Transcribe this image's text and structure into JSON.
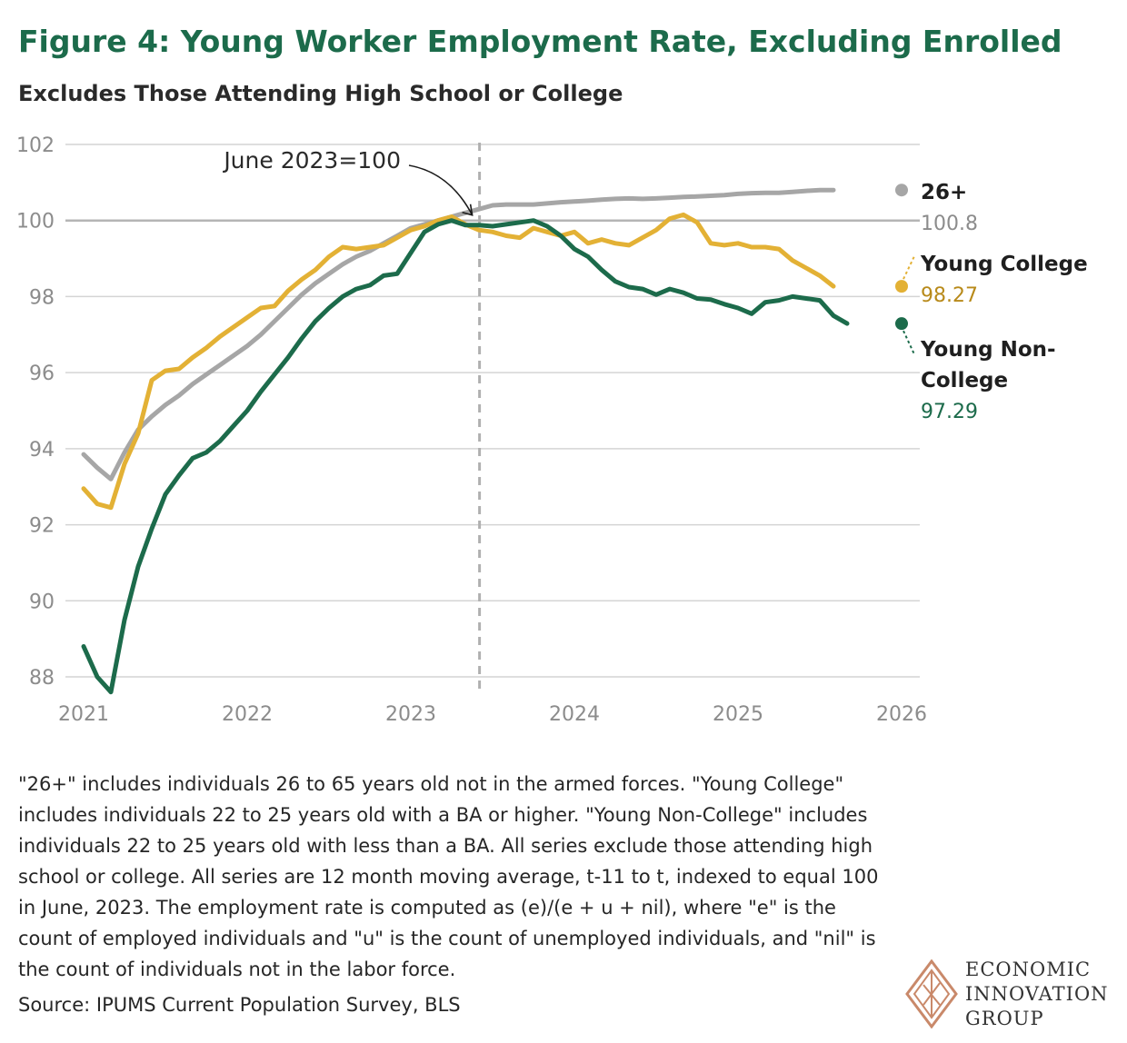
{
  "title": "Figure 4: Young Worker Employment Rate, Excluding Enrolled",
  "subtitle": "Excludes Those Attending High School or College",
  "note": "\"26+\" includes individuals 26 to 65 years old not in the armed forces. \"Young College\" includes individuals 22 to 25 years old with a BA or higher. \"Young Non-College\" includes individuals 22 to 25 years old with less than a BA. All series exclude those attending high school or college. All series are 12 month moving average, t-11 to t, indexed to equal 100 in June, 2023. The employment rate is computed as (e)/(e + u + nil), where \"e\" is the count of employed individuals and \"u\" is the count of unemployed individuals, and \"nil\" is the count of individuals not in the labor force.",
  "source": "Source: IPUMS Current Population Survey, BLS",
  "logo": {
    "line1": "ECONOMIC",
    "line2": "INNOVATION",
    "line3": "GROUP"
  },
  "colors": {
    "title": "#1c6b4b",
    "grid": "#d4d4d4",
    "axis_text": "#8c8c8c",
    "annotation": "#2a2a2a"
  },
  "chart_data": {
    "type": "line",
    "title": "Figure 4: Young Worker Employment Rate, Excluding Enrolled",
    "subtitle": "Excludes Those Attending High School or College",
    "xlabel": "",
    "ylabel": "",
    "xlim": [
      2021,
      2026
    ],
    "ylim": [
      88,
      102
    ],
    "x_ticks": [
      "2021",
      "2022",
      "2023",
      "2024",
      "2025",
      "2026"
    ],
    "y_ticks": [
      "88",
      "90",
      "92",
      "94",
      "96",
      "98",
      "100",
      "102"
    ],
    "baseline": 100,
    "grid": true,
    "annotation": {
      "text": "June 2023=100",
      "x": 2023.42,
      "y": 100
    },
    "series": [
      {
        "name": "26+",
        "end_label": "100.8",
        "color": "#a6a6a6",
        "label_color": "#1f1f1f",
        "value_color": "#8c8c8c",
        "start_x": 2021.0,
        "step": 0.08333,
        "values": [
          93.85,
          93.5,
          93.2,
          93.9,
          94.5,
          94.85,
          95.15,
          95.4,
          95.7,
          95.95,
          96.2,
          96.45,
          96.7,
          97.0,
          97.35,
          97.7,
          98.05,
          98.35,
          98.6,
          98.85,
          99.05,
          99.2,
          99.4,
          99.6,
          99.8,
          99.9,
          100.0,
          100.1,
          100.2,
          100.3,
          100.4,
          100.42,
          100.42,
          100.42,
          100.45,
          100.48,
          100.5,
          100.52,
          100.55,
          100.57,
          100.58,
          100.57,
          100.58,
          100.6,
          100.62,
          100.63,
          100.65,
          100.67,
          100.7,
          100.72,
          100.73,
          100.73,
          100.75,
          100.78,
          100.8,
          100.8
        ],
        "end_value": 100.8
      },
      {
        "name": "Young College",
        "end_label": "98.27",
        "color": "#e3b135",
        "label_color": "#1f1f1f",
        "value_color": "#b88a1a",
        "start_x": 2021.0,
        "step": 0.08333,
        "values": [
          92.95,
          92.55,
          92.45,
          93.6,
          94.4,
          95.8,
          96.05,
          96.1,
          96.4,
          96.65,
          96.95,
          97.2,
          97.45,
          97.7,
          97.75,
          98.15,
          98.45,
          98.7,
          99.05,
          99.3,
          99.25,
          99.3,
          99.35,
          99.55,
          99.75,
          99.85,
          100.0,
          100.1,
          99.9,
          99.75,
          99.7,
          99.6,
          99.55,
          99.8,
          99.7,
          99.6,
          99.7,
          99.4,
          99.5,
          99.4,
          99.35,
          99.55,
          99.75,
          100.05,
          100.15,
          99.95,
          99.4,
          99.35,
          99.4,
          99.3,
          99.3,
          99.25,
          98.95,
          98.75,
          98.55,
          98.27
        ],
        "end_value": 98.27
      },
      {
        "name": "Young Non-College",
        "end_label": "97.29",
        "color": "#1c6b4b",
        "label_color": "#1f1f1f",
        "value_color": "#1c6b4b",
        "start_x": 2021.0,
        "step": 0.08333,
        "values": [
          88.8,
          88.0,
          87.6,
          89.5,
          90.9,
          91.9,
          92.8,
          93.3,
          93.75,
          93.9,
          94.2,
          94.6,
          95.0,
          95.5,
          95.95,
          96.4,
          96.9,
          97.35,
          97.7,
          98.0,
          98.2,
          98.3,
          98.55,
          98.6,
          99.15,
          99.7,
          99.9,
          100.0,
          99.88,
          99.88,
          99.85,
          99.9,
          99.95,
          100.0,
          99.85,
          99.6,
          99.25,
          99.05,
          98.7,
          98.4,
          98.25,
          98.2,
          98.05,
          98.2,
          98.1,
          97.95,
          97.92,
          97.8,
          97.7,
          97.55,
          97.85,
          97.9,
          98.0,
          97.95,
          97.9,
          97.5,
          97.29
        ],
        "end_value": 97.29
      }
    ]
  }
}
